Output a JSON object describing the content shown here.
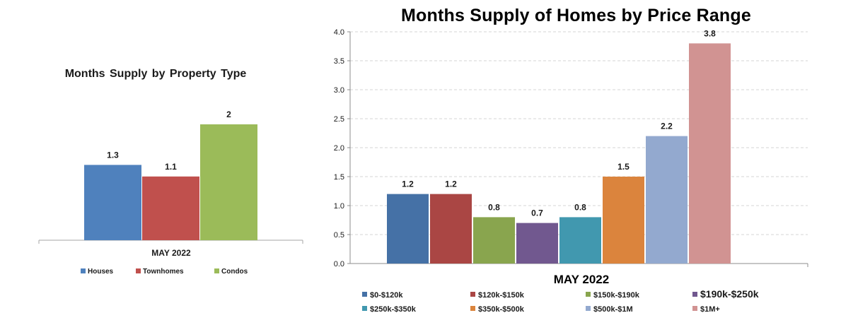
{
  "chart_data": [
    {
      "type": "bar",
      "title": "Months Supply by Property Type",
      "categories": [
        "MAY 2022"
      ],
      "xlabel": "MAY 2022",
      "ylabel": "",
      "ylim": [
        0,
        2.4
      ],
      "grid": false,
      "legend_position": "bottom",
      "series": [
        {
          "name": "Houses",
          "values": [
            1.3
          ],
          "labels": [
            "1.3"
          ],
          "color": "#4f81bd"
        },
        {
          "name": "Townhomes",
          "values": [
            1.1
          ],
          "labels": [
            "1.1"
          ],
          "color": "#c0504d"
        },
        {
          "name": "Condos",
          "values": [
            2
          ],
          "labels": [
            "2"
          ],
          "color": "#9bbb59"
        }
      ]
    },
    {
      "type": "bar",
      "title": "Months Supply of Homes by Price Range",
      "categories": [
        "MAY 2022"
      ],
      "xlabel": "MAY 2022",
      "ylabel": "",
      "ylim": [
        0,
        4.0
      ],
      "yticks": [
        "0.0",
        "0.5",
        "1.0",
        "1.5",
        "2.0",
        "2.5",
        "3.0",
        "3.5",
        "4.0"
      ],
      "grid": true,
      "legend_position": "bottom",
      "series": [
        {
          "name": "$0-$120k",
          "values": [
            1.2
          ],
          "labels": [
            "1.2"
          ],
          "color": "#4571a6"
        },
        {
          "name": "$120k-$150k",
          "values": [
            1.2
          ],
          "labels": [
            "1.2"
          ],
          "color": "#aa4644"
        },
        {
          "name": "$150k-$190k",
          "values": [
            0.8
          ],
          "labels": [
            "0.8"
          ],
          "color": "#89a54e"
        },
        {
          "name": "$190k-$250k",
          "values": [
            0.7
          ],
          "labels": [
            "0.7"
          ],
          "color": "#71588f"
        },
        {
          "name": "$250k-$350k",
          "values": [
            0.8
          ],
          "labels": [
            "0.8"
          ],
          "color": "#4198af"
        },
        {
          "name": "$350k-$500k",
          "values": [
            1.5
          ],
          "labels": [
            "1.5"
          ],
          "color": "#db843d"
        },
        {
          "name": "$500k-$1M",
          "values": [
            2.2
          ],
          "labels": [
            "2.2"
          ],
          "color": "#93a9cf"
        },
        {
          "name": "$1M+",
          "values": [
            3.8
          ],
          "labels": [
            "3.8"
          ],
          "color": "#d19392"
        }
      ]
    }
  ]
}
